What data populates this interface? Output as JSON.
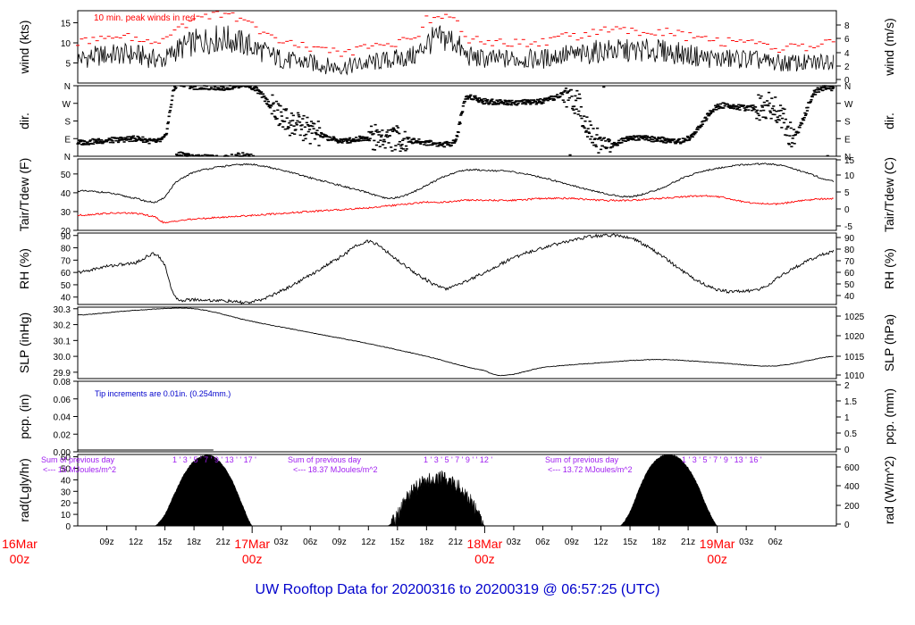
{
  "title": "UW Rooftop Data for 20200316  to  20200319 @ 06:57:25  (UTC)",
  "colors": {
    "frame": "#000000",
    "peak": "#ff0000",
    "tdew": "#ff0000",
    "title": "#0000cc",
    "note_blue": "#0000cc",
    "purple": "#a020f0",
    "date": "#ff0000",
    "fill": "#000000"
  },
  "time_axis": {
    "tick_labels": [
      "09z",
      "12z",
      "15z",
      "18z",
      "21z",
      "03z",
      "06z",
      "09z",
      "12z",
      "15z",
      "18z",
      "21z",
      "03z",
      "06z",
      "09z",
      "12z",
      "15z",
      "18z",
      "21z",
      "03z",
      "06z"
    ],
    "date_labels": [
      {
        "day": "16Mar",
        "hour": "00z"
      },
      {
        "day": "17Mar",
        "hour": "00z"
      },
      {
        "day": "18Mar",
        "hour": "00z"
      },
      {
        "day": "19Mar",
        "hour": "00z"
      }
    ]
  },
  "chart_data": [
    {
      "type": "line",
      "panel": "wind",
      "ylabel_left": "wind (kts)",
      "ylabel_right": "wind (m/s)",
      "left_ticks": [
        "5",
        "10",
        "15"
      ],
      "right_ticks": [
        "0",
        "2",
        "4",
        "6",
        "8"
      ],
      "ylim": [
        0,
        18
      ],
      "annotation": "10 min. peak winds in red",
      "x_hours": [
        6,
        9,
        12,
        14,
        15,
        16,
        18,
        21,
        24,
        27,
        30,
        33,
        36,
        39,
        41,
        42,
        44,
        45,
        46,
        48,
        51,
        54,
        56,
        58,
        60,
        63,
        66,
        69,
        72,
        75,
        78,
        80,
        82,
        84
      ],
      "values": [
        6,
        7,
        7,
        6,
        6,
        8,
        10,
        11,
        9,
        6,
        5,
        4,
        5,
        6,
        7,
        10,
        11,
        10,
        7,
        6,
        6,
        6,
        7,
        7,
        8,
        8,
        8,
        7,
        6,
        6,
        5,
        5,
        5,
        6
      ],
      "series": [
        {
          "name": "",
          "values": []
        },
        {
          "name": "10 min. peak winds in red",
          "values": []
        }
      ]
    },
    {
      "type": "scatter",
      "panel": "dir",
      "ylabel_left": "dir.",
      "ylabel_right": "dir.",
      "ticks": [
        "N",
        "E",
        "S",
        "W",
        "N"
      ],
      "tick_degrees": [
        0,
        90,
        180,
        270,
        360
      ],
      "x_hours": [
        6,
        9,
        12,
        15,
        16,
        18,
        21,
        24,
        27,
        30,
        33,
        36,
        39,
        42,
        45,
        46,
        48,
        51,
        54,
        57,
        60,
        63,
        66,
        69,
        72,
        75,
        78,
        80,
        82,
        84
      ],
      "values": [
        70,
        80,
        90,
        95,
        350,
        355,
        350,
        355,
        200,
        130,
        80,
        95,
        90,
        70,
        80,
        290,
        280,
        275,
        280,
        300,
        60,
        95,
        85,
        90,
        250,
        245,
        250,
        110,
        320,
        350
      ]
    },
    {
      "type": "line",
      "panel": "temperature",
      "ylabel_left": "Tair/Tdew (F)",
      "ylabel_right": "Tair/Tdew (C)",
      "left_ticks": [
        "20",
        "30",
        "40",
        "50"
      ],
      "right_ticks": [
        "-5",
        "0",
        "5",
        "10",
        "15"
      ],
      "ylim": [
        20,
        58
      ],
      "x_hours": [
        6,
        9,
        12,
        14,
        15,
        16,
        18,
        21,
        24,
        27,
        30,
        33,
        36,
        38,
        40,
        42,
        44,
        46,
        48,
        51,
        54,
        57,
        60,
        63,
        66,
        69,
        72,
        75,
        78,
        81,
        84
      ],
      "series": [
        {
          "name": "",
          "values": [
            41,
            40,
            37,
            35,
            38,
            45,
            51,
            54,
            55,
            52,
            48,
            44,
            40,
            37,
            39,
            44,
            49,
            52,
            52,
            51,
            48,
            44,
            40,
            38,
            42,
            49,
            53,
            55,
            55,
            51,
            46
          ]
        },
        {
          "name": "",
          "values": [
            28,
            29,
            29,
            27,
            24,
            25,
            26,
            27,
            28,
            29,
            30,
            31,
            32,
            33,
            34,
            35,
            35,
            36,
            36,
            36,
            37,
            37,
            36,
            36,
            37,
            38,
            38,
            35,
            34,
            36,
            37
          ]
        }
      ]
    },
    {
      "type": "line",
      "panel": "rh",
      "ylabel_left": "RH (%)",
      "ylabel_right": "RH (%)",
      "ticks": [
        "40",
        "50",
        "60",
        "70",
        "80",
        "90"
      ],
      "ylim": [
        34,
        92
      ],
      "x_hours": [
        6,
        9,
        12,
        14,
        15,
        16,
        18,
        21,
        24,
        27,
        30,
        33,
        36,
        39,
        42,
        44,
        45,
        48,
        51,
        54,
        57,
        60,
        63,
        66,
        69,
        72,
        75,
        77,
        78,
        81,
        84
      ],
      "values": [
        60,
        65,
        68,
        75,
        65,
        40,
        38,
        37,
        36,
        45,
        58,
        72,
        85,
        70,
        54,
        47,
        50,
        60,
        72,
        80,
        86,
        90,
        88,
        75,
        58,
        46,
        45,
        48,
        55,
        68,
        77
      ]
    },
    {
      "type": "line",
      "panel": "pressure",
      "ylabel_left": "SLP (inHg)",
      "ylabel_right": "SLP (hPa)",
      "left_ticks": [
        "29.9",
        "30.0",
        "30.1",
        "30.2",
        "30.3"
      ],
      "right_ticks": [
        "1010",
        "1015",
        "1020",
        "1025"
      ],
      "ylim": [
        29.86,
        30.31
      ],
      "x_hours": [
        6,
        12,
        18,
        24,
        30,
        36,
        42,
        48,
        50,
        54,
        60,
        66,
        72,
        78,
        84
      ],
      "values": [
        30.26,
        30.29,
        30.3,
        30.22,
        30.15,
        30.08,
        30.0,
        29.91,
        29.88,
        29.93,
        29.96,
        29.98,
        29.96,
        29.94,
        30.0
      ]
    },
    {
      "type": "line",
      "panel": "precipitation",
      "ylabel_left": "pcp. (in)",
      "ylabel_right": "pcp. (mm)",
      "left_ticks": [
        "0.00",
        "0.02",
        "0.04",
        "0.06",
        "0.08"
      ],
      "right_ticks": [
        "0",
        "0.5",
        "1",
        "1.5",
        "2"
      ],
      "ylim": [
        0,
        0.08
      ],
      "annotation": "Tip increments are 0.01in. (0.254mm.)",
      "x_hours": [
        6,
        20
      ],
      "values": [
        0,
        0
      ]
    },
    {
      "type": "area",
      "panel": "radiation",
      "ylabel_left": "rad(Lgly/hr)",
      "ylabel_right": "rad (W/m^2)",
      "left_ticks": [
        "0",
        "10",
        "20",
        "30",
        "40",
        "50",
        "60"
      ],
      "right_ticks": [
        "0",
        "200",
        "400",
        "600"
      ],
      "ylim": [
        0,
        62
      ],
      "x_hours": [
        14,
        15,
        16,
        17,
        18,
        19,
        20,
        21,
        22,
        23,
        24,
        38,
        39,
        40,
        41,
        42,
        43,
        44,
        45,
        46,
        47,
        48,
        62,
        63,
        64,
        65,
        66,
        67,
        68,
        69,
        70,
        71,
        72
      ],
      "values": [
        0,
        10,
        28,
        45,
        56,
        61,
        60,
        52,
        38,
        18,
        0,
        0,
        8,
        25,
        33,
        38,
        42,
        40,
        35,
        28,
        15,
        0,
        0,
        12,
        33,
        50,
        59,
        62,
        59,
        50,
        35,
        15,
        0
      ],
      "daily_notes": [
        {
          "line1": "Sum of previous day",
          "line2": "<--- 16 MJoules/m^2",
          "hours": "1 ' 3 ' 5 ' 7 ' 9 ' 13 ' ' 17 '"
        },
        {
          "line1": "Sum of previous day",
          "line2": "<--- 18.37 MJoules/m^2",
          "hours": "1 ' 3 ' 5 ' 7 ' 9 ' ' 12 '"
        },
        {
          "line1": "Sum of previous day",
          "line2": "<--- 13.72 MJoules/m^2",
          "hours": "1 ' 3 ' 5 ' 7 ' 9 ' 13 ' 16 '"
        }
      ]
    }
  ]
}
